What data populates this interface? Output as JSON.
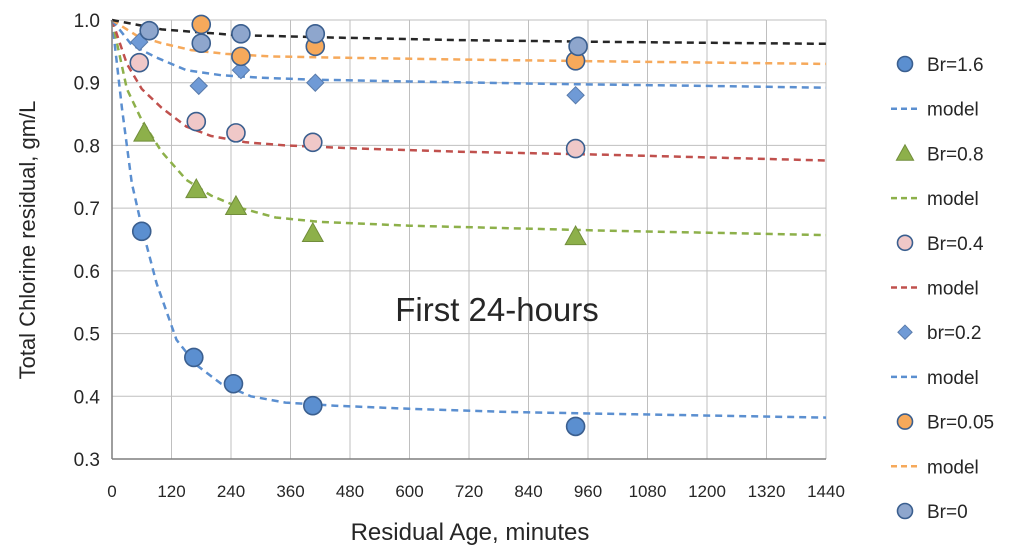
{
  "chart_data": {
    "type": "scatter",
    "title": "",
    "annotation": "First 24-hours",
    "xlabel": "Residual Age,  minutes",
    "ylabel": "Total Chlorine residual, gm/L",
    "xlim": [
      0,
      1440
    ],
    "ylim": [
      0.3,
      1.0
    ],
    "xticks": [
      0,
      120,
      240,
      360,
      480,
      600,
      720,
      840,
      960,
      1080,
      1200,
      1320,
      1440
    ],
    "yticks": [
      "0.3",
      "0.4",
      "0.5",
      "0.6",
      "0.7",
      "0.8",
      "0.9",
      "1.0"
    ],
    "grid": true,
    "legend_position": "right",
    "series": [
      {
        "name": "Br=1.6",
        "kind": "points",
        "marker": "circle",
        "color": "#5b8fd0",
        "points": [
          [
            60,
            0.663
          ],
          [
            165,
            0.462
          ],
          [
            245,
            0.42
          ],
          [
            405,
            0.385
          ],
          [
            935,
            0.352
          ]
        ]
      },
      {
        "name": "model",
        "kind": "model",
        "color": "#5b8fd0",
        "points": [
          [
            0,
            1.0
          ],
          [
            20,
            0.86
          ],
          [
            40,
            0.74
          ],
          [
            60,
            0.67
          ],
          [
            90,
            0.58
          ],
          [
            130,
            0.49
          ],
          [
            170,
            0.45
          ],
          [
            220,
            0.42
          ],
          [
            280,
            0.4
          ],
          [
            350,
            0.39
          ],
          [
            450,
            0.385
          ],
          [
            600,
            0.38
          ],
          [
            800,
            0.375
          ],
          [
            1000,
            0.372
          ],
          [
            1440,
            0.366
          ]
        ]
      },
      {
        "name": "Br=0.8",
        "kind": "points",
        "marker": "triangle",
        "color": "#8db04a",
        "points": [
          [
            65,
            0.82
          ],
          [
            170,
            0.73
          ],
          [
            250,
            0.703
          ],
          [
            405,
            0.66
          ],
          [
            935,
            0.655
          ]
        ]
      },
      {
        "name": "model",
        "kind": "model",
        "color": "#8db04a",
        "points": [
          [
            0,
            1.0
          ],
          [
            30,
            0.89
          ],
          [
            60,
            0.84
          ],
          [
            100,
            0.79
          ],
          [
            150,
            0.745
          ],
          [
            200,
            0.72
          ],
          [
            260,
            0.7
          ],
          [
            330,
            0.685
          ],
          [
            420,
            0.678
          ],
          [
            600,
            0.672
          ],
          [
            800,
            0.668
          ],
          [
            1000,
            0.664
          ],
          [
            1440,
            0.657
          ]
        ]
      },
      {
        "name": "Br=0.4",
        "kind": "points",
        "marker": "circle",
        "color": "#f0c8c8",
        "points": [
          [
            55,
            0.932
          ],
          [
            170,
            0.838
          ],
          [
            250,
            0.82
          ],
          [
            405,
            0.805
          ],
          [
            935,
            0.795
          ]
        ]
      },
      {
        "name": "model",
        "kind": "model",
        "color": "#c0504d",
        "points": [
          [
            0,
            1.0
          ],
          [
            30,
            0.93
          ],
          [
            60,
            0.89
          ],
          [
            100,
            0.86
          ],
          [
            150,
            0.83
          ],
          [
            200,
            0.815
          ],
          [
            270,
            0.805
          ],
          [
            350,
            0.8
          ],
          [
            500,
            0.795
          ],
          [
            700,
            0.79
          ],
          [
            1000,
            0.785
          ],
          [
            1440,
            0.776
          ]
        ]
      },
      {
        "name": "br=0.2",
        "kind": "points",
        "marker": "diamond",
        "color": "#6f9ad6",
        "points": [
          [
            55,
            0.965
          ],
          [
            175,
            0.895
          ],
          [
            260,
            0.92
          ],
          [
            410,
            0.9
          ],
          [
            935,
            0.88
          ]
        ]
      },
      {
        "name": "model",
        "kind": "model",
        "color": "#5b8fd0",
        "points": [
          [
            0,
            1.0
          ],
          [
            40,
            0.96
          ],
          [
            90,
            0.94
          ],
          [
            150,
            0.92
          ],
          [
            220,
            0.912
          ],
          [
            300,
            0.908
          ],
          [
            400,
            0.905
          ],
          [
            600,
            0.902
          ],
          [
            900,
            0.898
          ],
          [
            1200,
            0.895
          ],
          [
            1440,
            0.892
          ]
        ]
      },
      {
        "name": "Br=0.05",
        "kind": "points",
        "marker": "circle",
        "color": "#f6a95b",
        "points": [
          [
            180,
            0.993
          ],
          [
            260,
            0.942
          ],
          [
            410,
            0.958
          ],
          [
            935,
            0.935
          ]
        ]
      },
      {
        "name": "model",
        "kind": "model",
        "color": "#f6a95b",
        "points": [
          [
            0,
            1.0
          ],
          [
            50,
            0.975
          ],
          [
            100,
            0.963
          ],
          [
            160,
            0.952
          ],
          [
            230,
            0.946
          ],
          [
            320,
            0.942
          ],
          [
            450,
            0.94
          ],
          [
            700,
            0.937
          ],
          [
            1000,
            0.934
          ],
          [
            1440,
            0.93
          ]
        ]
      },
      {
        "name": "Br=0",
        "kind": "points",
        "marker": "circle",
        "color": "#8ea6cd",
        "points": [
          [
            75,
            0.983
          ],
          [
            180,
            0.963
          ],
          [
            260,
            0.978
          ],
          [
            410,
            0.978
          ],
          [
            940,
            0.958
          ]
        ]
      },
      {
        "name": "",
        "kind": "model",
        "color": "#262626",
        "points": [
          [
            0,
            1.0
          ],
          [
            100,
            0.985
          ],
          [
            250,
            0.976
          ],
          [
            450,
            0.972
          ],
          [
            700,
            0.968
          ],
          [
            1000,
            0.965
          ],
          [
            1440,
            0.962
          ]
        ]
      }
    ],
    "legend": [
      {
        "label": "Br=1.6",
        "symbol": "circle",
        "color": "#5b8fd0"
      },
      {
        "label": "model",
        "symbol": "dash",
        "color": "#5b8fd0"
      },
      {
        "label": "Br=0.8",
        "symbol": "triangle",
        "color": "#8db04a"
      },
      {
        "label": "model",
        "symbol": "dash",
        "color": "#8db04a"
      },
      {
        "label": "Br=0.4",
        "symbol": "circle",
        "color": "#f0c8c8"
      },
      {
        "label": "model",
        "symbol": "dash",
        "color": "#c0504d"
      },
      {
        "label": "br=0.2",
        "symbol": "diamond",
        "color": "#6f9ad6"
      },
      {
        "label": "model",
        "symbol": "dash",
        "color": "#5b8fd0"
      },
      {
        "label": "Br=0.05",
        "symbol": "circle",
        "color": "#f6a95b"
      },
      {
        "label": "model",
        "symbol": "dash",
        "color": "#f6a95b"
      },
      {
        "label": "Br=0",
        "symbol": "circle",
        "color": "#8ea6cd"
      }
    ]
  }
}
